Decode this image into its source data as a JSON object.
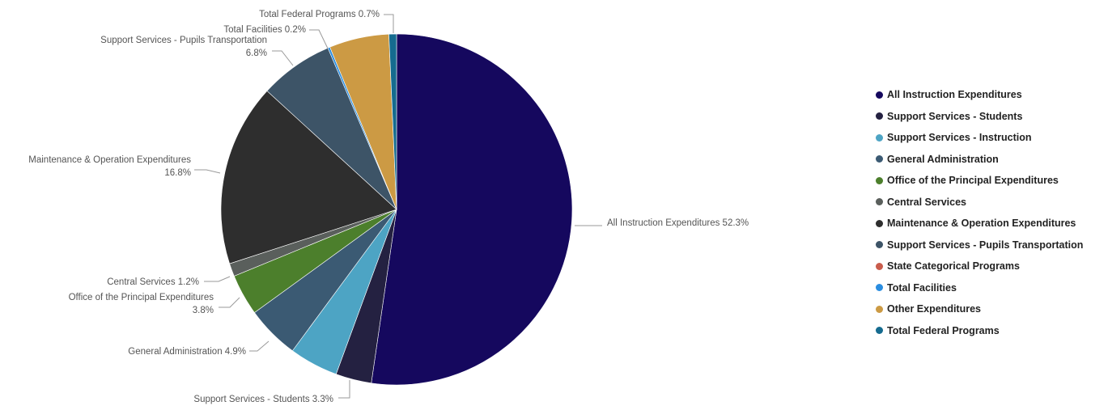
{
  "chart_data": {
    "type": "pie",
    "title": "",
    "slices": [
      {
        "name": "All Instruction Expenditures",
        "value": 52.3,
        "label": "All Instruction Expenditures 52.3%",
        "color": "#15085e"
      },
      {
        "name": "Support Services - Students",
        "value": 3.3,
        "label": "Support Services - Students 3.3%",
        "color": "#242141"
      },
      {
        "name": "Support Services - Instruction",
        "value": 4.5,
        "label": "",
        "color": "#4da4c4"
      },
      {
        "name": "General Administration",
        "value": 4.9,
        "label": "General Administration 4.9%",
        "color": "#3b5a73"
      },
      {
        "name": "Office of the Principal Expenditures",
        "value": 3.8,
        "label": "Office of the Principal Expenditures 3.8%",
        "color": "#4c7f2c"
      },
      {
        "name": "Central Services",
        "value": 1.2,
        "label": "Central Services 1.2%",
        "color": "#5a5f5c"
      },
      {
        "name": "Maintenance & Operation Expenditures",
        "value": 16.8,
        "label": "Maintenance & Operation Expenditures 16.8%",
        "color": "#2e2e2e"
      },
      {
        "name": "Support Services - Pupils Transportation",
        "value": 6.8,
        "label": "Support Services - Pupils Transportation 6.8%",
        "color": "#3d5467"
      },
      {
        "name": "State Categorical Programs",
        "value": 0.0,
        "label": "",
        "color": "#c95c4c"
      },
      {
        "name": "Total Facilities",
        "value": 0.2,
        "label": "Total Facilities 0.2%",
        "color": "#2a8de0"
      },
      {
        "name": "Other Expenditures",
        "value": 5.5,
        "label": "",
        "color": "#cc9a44"
      },
      {
        "name": "Total Federal Programs",
        "value": 0.7,
        "label": "Total Federal Programs 0.7%",
        "color": "#156b8f"
      }
    ],
    "legend_position": "right"
  }
}
